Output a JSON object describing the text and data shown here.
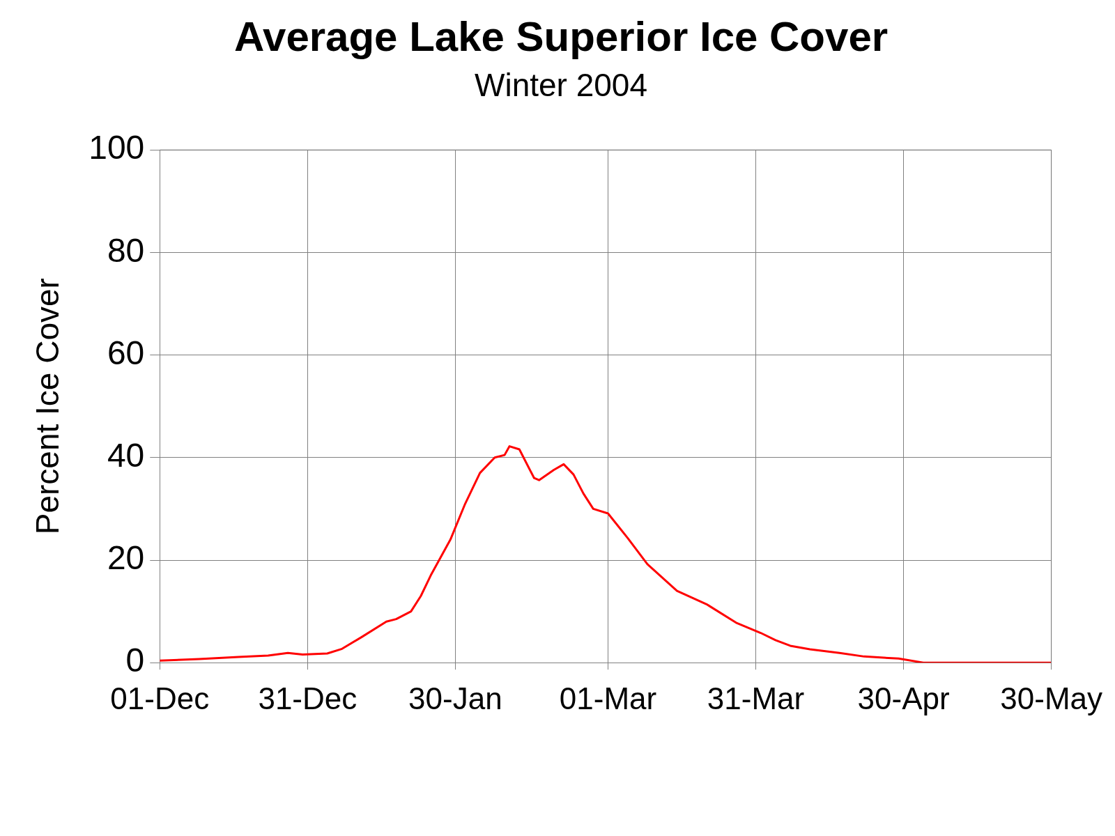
{
  "chart_data": {
    "type": "line",
    "title": "Average Lake Superior Ice Cover",
    "subtitle": "Winter 2004",
    "ylabel": "Percent Ice Cover",
    "x": [
      "2003-12-01",
      "2003-12-09",
      "2003-12-17",
      "2003-12-23",
      "2003-12-27",
      "2003-12-30",
      "2004-01-04",
      "2004-01-07",
      "2004-01-11",
      "2004-01-16",
      "2004-01-18",
      "2004-01-21",
      "2004-01-23",
      "2004-01-25",
      "2004-01-29",
      "2004-02-01",
      "2004-02-04",
      "2004-02-07",
      "2004-02-09",
      "2004-02-10",
      "2004-02-12",
      "2004-02-15",
      "2004-02-16",
      "2004-02-19",
      "2004-02-21",
      "2004-02-23",
      "2004-02-25",
      "2004-02-27",
      "2004-03-01",
      "2004-03-05",
      "2004-03-09",
      "2004-03-15",
      "2004-03-21",
      "2004-03-27",
      "2004-04-01",
      "2004-04-04",
      "2004-04-07",
      "2004-04-11",
      "2004-04-17",
      "2004-04-22",
      "2004-04-29",
      "2004-05-04",
      "2004-05-30"
    ],
    "series": [
      {
        "color": "#ff0000",
        "values": [
          0.4,
          0.7,
          1.1,
          1.4,
          1.9,
          1.6,
          1.8,
          2.7,
          5,
          8,
          8.5,
          10,
          13,
          17,
          24,
          31,
          37,
          40,
          40.5,
          42.2,
          41.6,
          36,
          35.6,
          37.6,
          38.7,
          36.7,
          33,
          30,
          29.1,
          24.3,
          19.2,
          14,
          11.4,
          7.8,
          5.8,
          4.4,
          3.3,
          2.6,
          1.9,
          1.2,
          0.8,
          0,
          0
        ]
      }
    ],
    "xlim": [
      "2003-12-01",
      "2004-05-30"
    ],
    "xticks": [
      {
        "value": "2003-12-01",
        "label": "01-Dec"
      },
      {
        "value": "2003-12-31",
        "label": "31-Dec"
      },
      {
        "value": "2004-01-30",
        "label": "30-Jan"
      },
      {
        "value": "2004-03-01",
        "label": "01-Mar"
      },
      {
        "value": "2004-03-31",
        "label": "31-Mar"
      },
      {
        "value": "2004-04-30",
        "label": "30-Apr"
      },
      {
        "value": "2004-05-30",
        "label": "30-May"
      }
    ],
    "ylim": [
      0,
      100
    ],
    "yticks": [
      0,
      20,
      40,
      60,
      80,
      100
    ],
    "grid": true,
    "legend": false,
    "marker": "none",
    "line_style": "solid"
  }
}
